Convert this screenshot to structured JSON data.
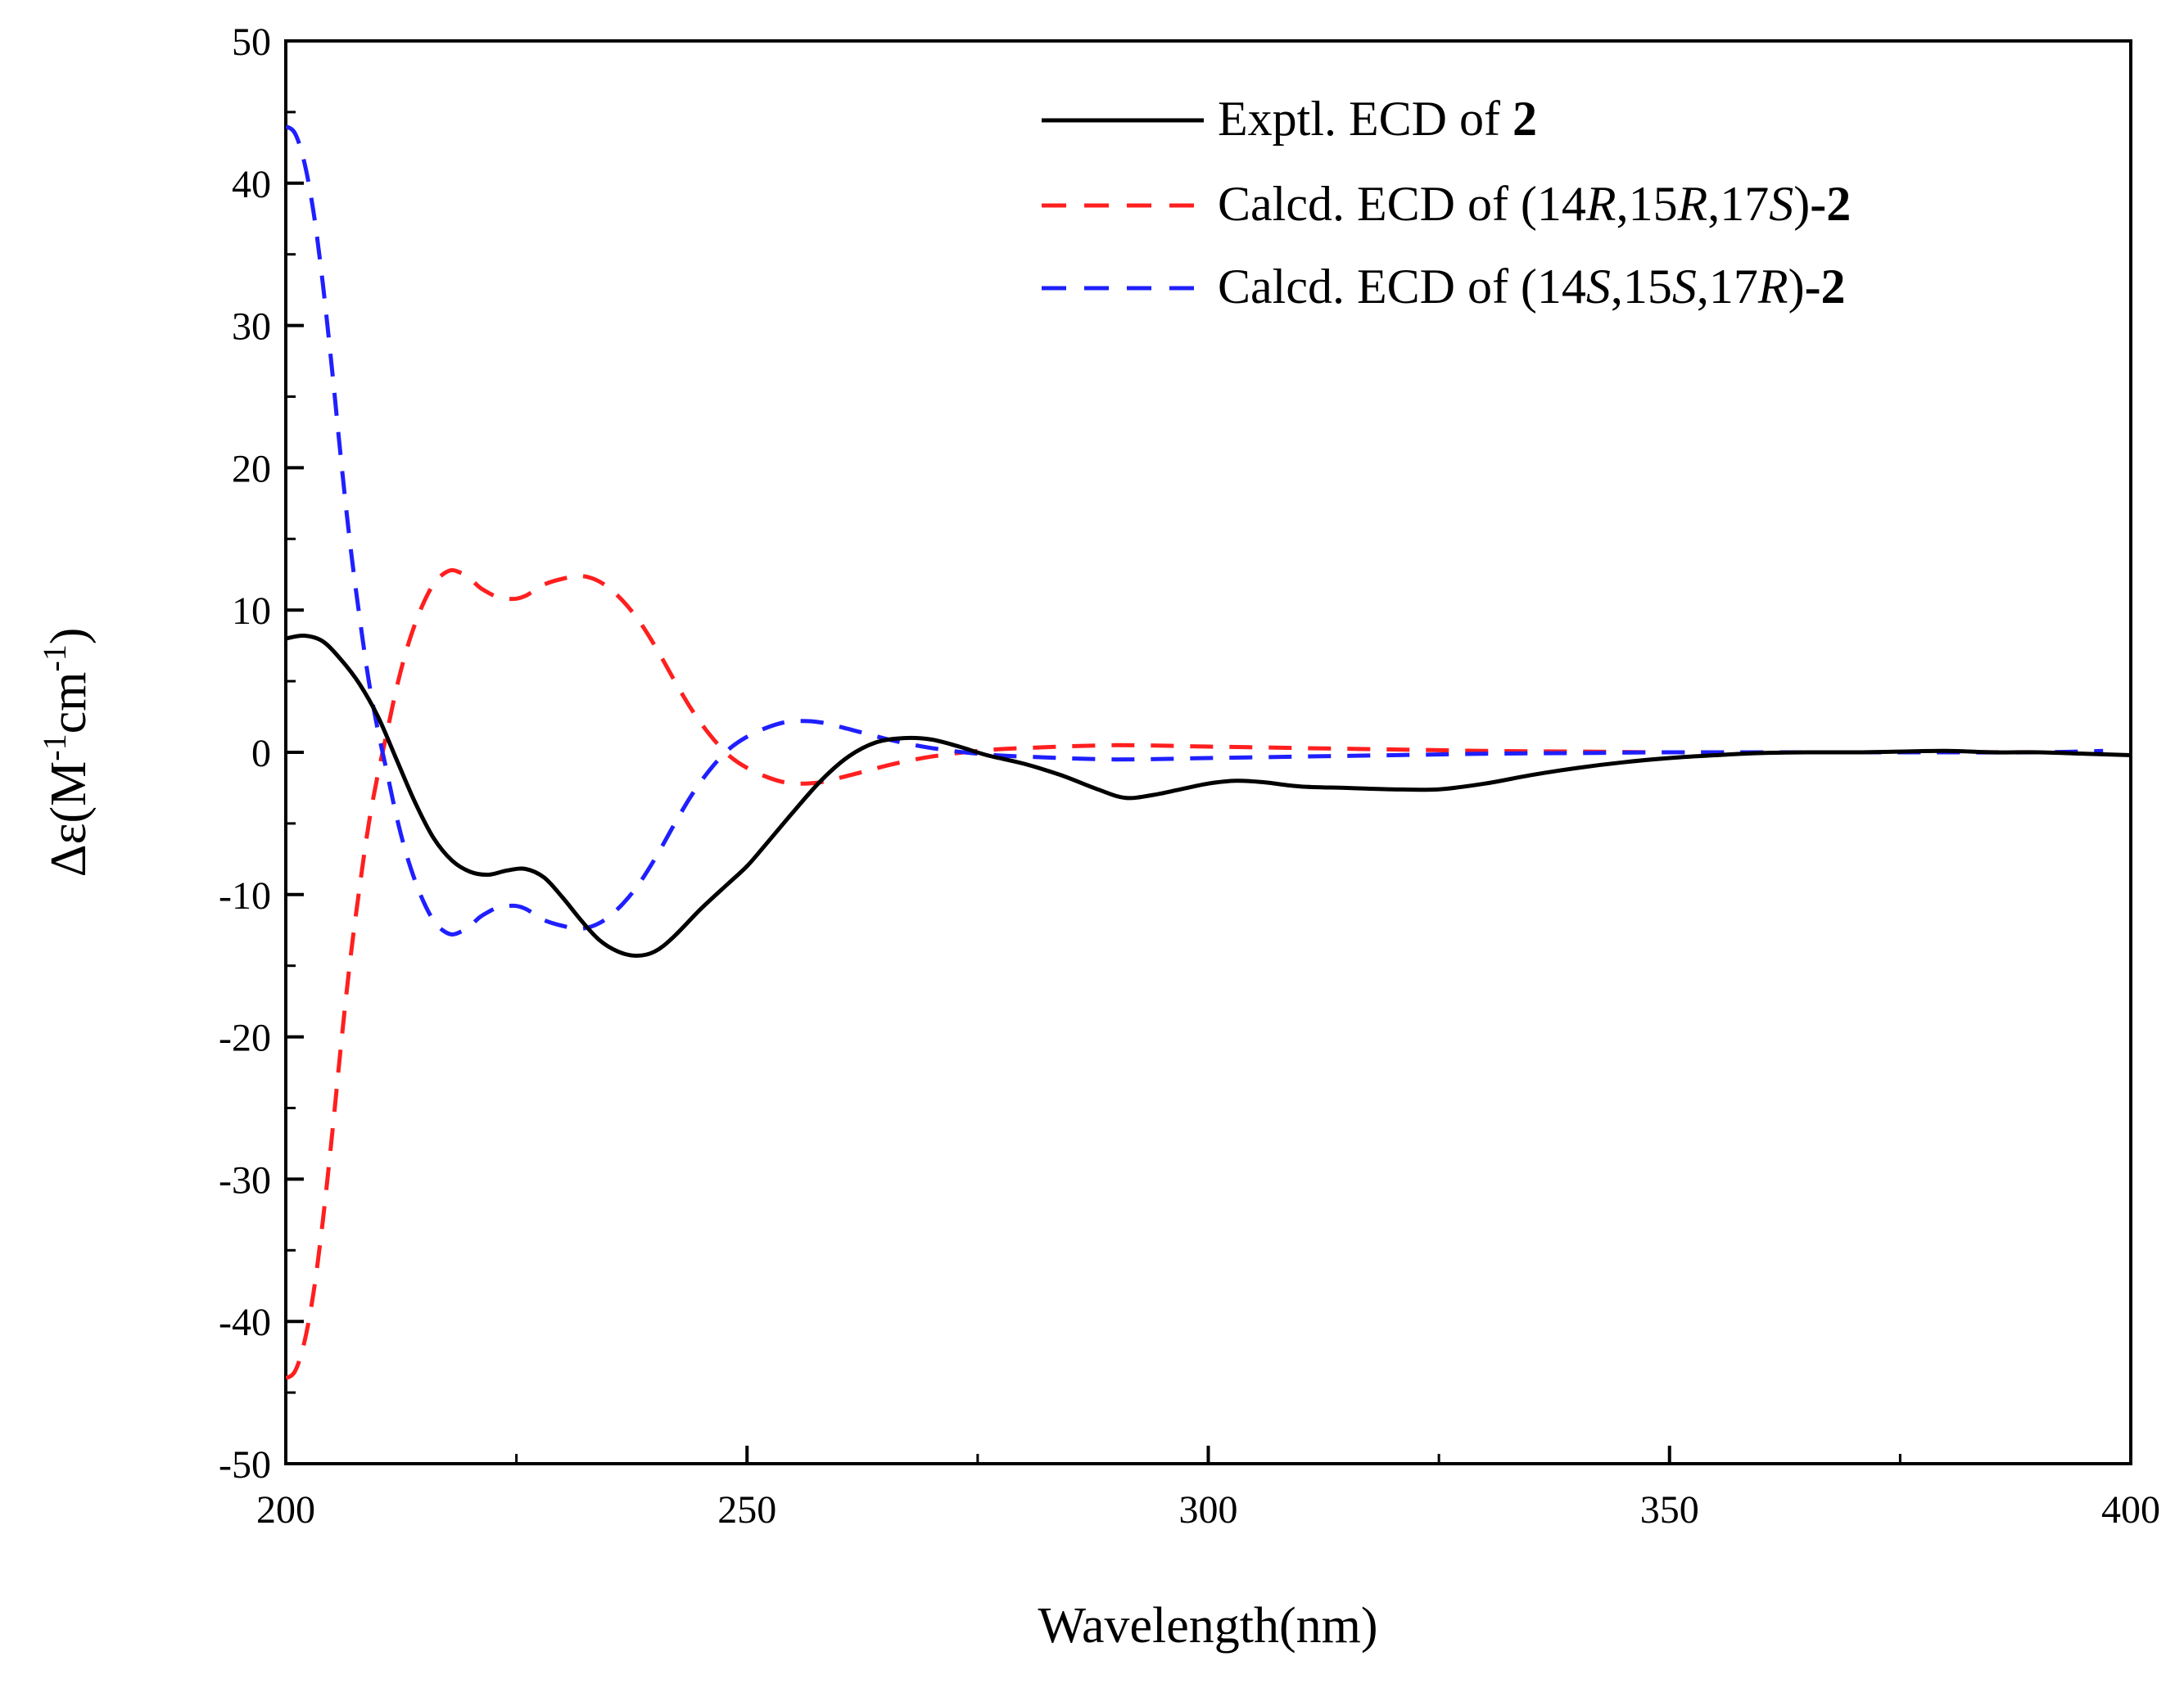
{
  "chart_data": {
    "type": "line",
    "xlabel": "Wavelength(nm)",
    "ylabel": {
      "prefix": "Δε(M",
      "sup1": "-1",
      "mid": "cm",
      "sup2": "-1",
      "suffix": ")"
    },
    "xlim": [
      200,
      400
    ],
    "ylim": [
      -50,
      50
    ],
    "x_ticks": [
      200,
      250,
      300,
      350,
      400
    ],
    "y_ticks": [
      -50,
      -40,
      -30,
      -20,
      -10,
      0,
      10,
      20,
      30,
      40,
      50
    ],
    "legend_position": "top-right",
    "series": [
      {
        "name": "Exptl. ECD of 2",
        "legend": [
          {
            "text": "Exptl. ECD of ",
            "style": "normal"
          },
          {
            "text": "2",
            "style": "bold"
          }
        ],
        "color": "#000000",
        "dash": "solid",
        "points": [
          [
            200,
            8.0
          ],
          [
            202,
            8.2
          ],
          [
            204,
            7.8
          ],
          [
            206,
            6.5
          ],
          [
            208,
            4.8
          ],
          [
            210,
            2.5
          ],
          [
            212,
            -0.5
          ],
          [
            214,
            -3.5
          ],
          [
            216,
            -6.0
          ],
          [
            218,
            -7.6
          ],
          [
            220,
            -8.4
          ],
          [
            222,
            -8.6
          ],
          [
            224,
            -8.3
          ],
          [
            226,
            -8.2
          ],
          [
            228,
            -8.8
          ],
          [
            230,
            -10.2
          ],
          [
            232,
            -11.8
          ],
          [
            234,
            -13.2
          ],
          [
            236,
            -14.0
          ],
          [
            238,
            -14.3
          ],
          [
            240,
            -14.0
          ],
          [
            242,
            -13.0
          ],
          [
            245,
            -11.0
          ],
          [
            248,
            -9.2
          ],
          [
            250,
            -8.0
          ],
          [
            252,
            -6.5
          ],
          [
            255,
            -4.2
          ],
          [
            258,
            -2.0
          ],
          [
            261,
            -0.3
          ],
          [
            264,
            0.7
          ],
          [
            267,
            1.0
          ],
          [
            270,
            0.9
          ],
          [
            273,
            0.4
          ],
          [
            276,
            -0.2
          ],
          [
            280,
            -0.8
          ],
          [
            284,
            -1.6
          ],
          [
            288,
            -2.6
          ],
          [
            291,
            -3.2
          ],
          [
            294,
            -3.0
          ],
          [
            297,
            -2.6
          ],
          [
            300,
            -2.2
          ],
          [
            303,
            -2.0
          ],
          [
            306,
            -2.1
          ],
          [
            310,
            -2.4
          ],
          [
            315,
            -2.5
          ],
          [
            320,
            -2.6
          ],
          [
            325,
            -2.6
          ],
          [
            330,
            -2.2
          ],
          [
            335,
            -1.6
          ],
          [
            340,
            -1.1
          ],
          [
            345,
            -0.7
          ],
          [
            350,
            -0.4
          ],
          [
            355,
            -0.2
          ],
          [
            360,
            -0.05
          ],
          [
            365,
            0.0
          ],
          [
            370,
            0.0
          ],
          [
            375,
            0.05
          ],
          [
            380,
            0.1
          ],
          [
            385,
            0.0
          ],
          [
            390,
            0.0
          ],
          [
            395,
            -0.1
          ],
          [
            400,
            -0.2
          ]
        ]
      },
      {
        "name": "Calcd. ECD of (14R,15R,17S)-2",
        "legend": [
          {
            "text": "Calcd. ECD of (14",
            "style": "normal"
          },
          {
            "text": "R",
            "style": "italic"
          },
          {
            "text": ",15",
            "style": "normal"
          },
          {
            "text": "R",
            "style": "italic"
          },
          {
            "text": ",17",
            "style": "normal"
          },
          {
            "text": "S",
            "style": "italic"
          },
          {
            "text": ")",
            "style": "normal"
          },
          {
            "text": "-2",
            "style": "bold"
          }
        ],
        "color": "#ff1f1f",
        "dash": "dashed",
        "points": [
          [
            200,
            -44.0
          ],
          [
            201,
            -43.5
          ],
          [
            202,
            -41.5
          ],
          [
            203,
            -38.0
          ],
          [
            204,
            -33.0
          ],
          [
            205,
            -27.0
          ],
          [
            206,
            -20.5
          ],
          [
            207,
            -14.5
          ],
          [
            208,
            -9.5
          ],
          [
            209,
            -5.0
          ],
          [
            210,
            -1.5
          ],
          [
            211,
            1.5
          ],
          [
            212,
            4.5
          ],
          [
            213,
            7.0
          ],
          [
            214,
            9.0
          ],
          [
            215,
            10.6
          ],
          [
            216,
            11.8
          ],
          [
            217,
            12.5
          ],
          [
            218,
            12.8
          ],
          [
            219,
            12.6
          ],
          [
            220,
            12.2
          ],
          [
            221,
            11.6
          ],
          [
            222,
            11.2
          ],
          [
            223,
            10.9
          ],
          [
            224,
            10.8
          ],
          [
            225,
            10.8
          ],
          [
            226,
            11.0
          ],
          [
            227,
            11.4
          ],
          [
            228,
            11.8
          ],
          [
            230,
            12.2
          ],
          [
            232,
            12.4
          ],
          [
            234,
            12.0
          ],
          [
            236,
            11.0
          ],
          [
            238,
            9.5
          ],
          [
            240,
            7.5
          ],
          [
            242,
            5.2
          ],
          [
            244,
            3.0
          ],
          [
            246,
            1.2
          ],
          [
            248,
            -0.2
          ],
          [
            250,
            -1.1
          ],
          [
            252,
            -1.7
          ],
          [
            254,
            -2.1
          ],
          [
            256,
            -2.2
          ],
          [
            258,
            -2.1
          ],
          [
            260,
            -1.8
          ],
          [
            263,
            -1.3
          ],
          [
            266,
            -0.8
          ],
          [
            270,
            -0.3
          ],
          [
            275,
            0.1
          ],
          [
            280,
            0.3
          ],
          [
            290,
            0.5
          ],
          [
            300,
            0.4
          ],
          [
            310,
            0.3
          ],
          [
            320,
            0.2
          ],
          [
            330,
            0.1
          ],
          [
            340,
            0.05
          ],
          [
            350,
            0.0
          ],
          [
            360,
            0.0
          ],
          [
            370,
            0.0
          ],
          [
            380,
            0.0
          ],
          [
            390,
            0.0
          ],
          [
            397,
            -0.1
          ]
        ]
      },
      {
        "name": "Calcd. ECD of (14S,15S,17R)-2",
        "legend": [
          {
            "text": "Calcd. ECD of (14",
            "style": "normal"
          },
          {
            "text": "S",
            "style": "italic"
          },
          {
            "text": ",15",
            "style": "normal"
          },
          {
            "text": "S",
            "style": "italic"
          },
          {
            "text": ",17",
            "style": "normal"
          },
          {
            "text": "R",
            "style": "italic"
          },
          {
            "text": ")",
            "style": "normal"
          },
          {
            "text": "-2",
            "style": "bold"
          }
        ],
        "color": "#1f1fff",
        "dash": "dashed",
        "points": [
          [
            200,
            44.0
          ],
          [
            201,
            43.5
          ],
          [
            202,
            41.5
          ],
          [
            203,
            38.0
          ],
          [
            204,
            33.0
          ],
          [
            205,
            27.0
          ],
          [
            206,
            20.5
          ],
          [
            207,
            14.5
          ],
          [
            208,
            9.5
          ],
          [
            209,
            5.0
          ],
          [
            210,
            1.5
          ],
          [
            211,
            -1.5
          ],
          [
            212,
            -4.5
          ],
          [
            213,
            -7.0
          ],
          [
            214,
            -9.0
          ],
          [
            215,
            -10.6
          ],
          [
            216,
            -11.8
          ],
          [
            217,
            -12.5
          ],
          [
            218,
            -12.8
          ],
          [
            219,
            -12.6
          ],
          [
            220,
            -12.2
          ],
          [
            221,
            -11.6
          ],
          [
            222,
            -11.2
          ],
          [
            223,
            -10.9
          ],
          [
            224,
            -10.8
          ],
          [
            225,
            -10.8
          ],
          [
            226,
            -11.0
          ],
          [
            227,
            -11.4
          ],
          [
            228,
            -11.8
          ],
          [
            230,
            -12.2
          ],
          [
            232,
            -12.4
          ],
          [
            234,
            -12.0
          ],
          [
            236,
            -11.0
          ],
          [
            238,
            -9.5
          ],
          [
            240,
            -7.5
          ],
          [
            242,
            -5.2
          ],
          [
            244,
            -3.0
          ],
          [
            246,
            -1.2
          ],
          [
            248,
            0.2
          ],
          [
            250,
            1.1
          ],
          [
            252,
            1.7
          ],
          [
            254,
            2.1
          ],
          [
            256,
            2.2
          ],
          [
            258,
            2.1
          ],
          [
            260,
            1.8
          ],
          [
            263,
            1.3
          ],
          [
            266,
            0.8
          ],
          [
            270,
            0.3
          ],
          [
            275,
            -0.1
          ],
          [
            280,
            -0.3
          ],
          [
            290,
            -0.5
          ],
          [
            300,
            -0.4
          ],
          [
            310,
            -0.3
          ],
          [
            320,
            -0.2
          ],
          [
            330,
            -0.1
          ],
          [
            340,
            -0.05
          ],
          [
            350,
            0.0
          ],
          [
            360,
            0.0
          ],
          [
            370,
            0.0
          ],
          [
            380,
            0.0
          ],
          [
            390,
            0.0
          ],
          [
            397,
            0.1
          ]
        ]
      }
    ]
  }
}
